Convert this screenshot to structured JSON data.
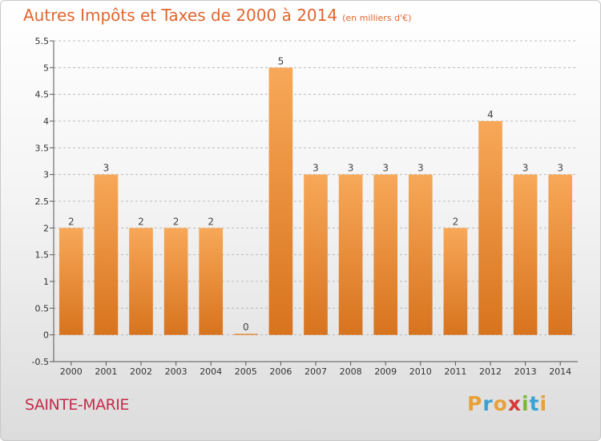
{
  "header": {
    "title": "Autres Impôts et Taxes de 2000 à 2014",
    "unit": "(en milliers d'€)"
  },
  "footer": {
    "commune": "SAINTE-MARIE",
    "logo_letters": [
      "P",
      "r",
      "o",
      "x",
      "i",
      "t",
      "i"
    ]
  },
  "colors": {
    "title": "#e0662e",
    "bar_top": "#f7a858",
    "bar_bottom": "#d8731e",
    "grid": "#bbbbbb",
    "commune": "#c62b4b"
  },
  "chart_data": {
    "type": "bar",
    "title": "Autres Impôts et Taxes de 2000 à 2014",
    "subtitle": "(en milliers d'€)",
    "categories": [
      "2000",
      "2001",
      "2002",
      "2003",
      "2004",
      "2005",
      "2006",
      "2007",
      "2008",
      "2009",
      "2010",
      "2011",
      "2012",
      "2013",
      "2014"
    ],
    "values": [
      2,
      3,
      2,
      2,
      2,
      0,
      5,
      3,
      3,
      3,
      3,
      2,
      4,
      3,
      3
    ],
    "data_labels": [
      "2",
      "3",
      "2",
      "2",
      "2",
      "0",
      "5",
      "3",
      "3",
      "3",
      "3",
      "2",
      "4",
      "3",
      "3"
    ],
    "yticks": [
      "-0.5",
      "0",
      "0.5",
      "1",
      "1.5",
      "2",
      "2.5",
      "3",
      "3.5",
      "4",
      "4.5",
      "5",
      "5.5"
    ],
    "ylim": [
      -0.5,
      5.5
    ],
    "grid": "horizontal dashed",
    "legend": "none"
  }
}
